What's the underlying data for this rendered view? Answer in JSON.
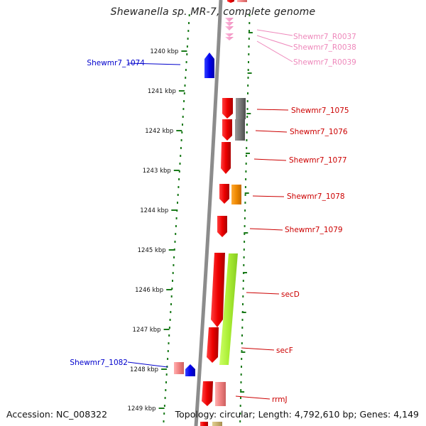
{
  "title": "Shewanella sp. MR-7, complete genome",
  "footer": {
    "accession": "Accession: NC_008322",
    "summary": "Topology: circular; Length: 4,792,610 bp; Genes: 4,149"
  },
  "ticks": [
    "1240 kbp",
    "1241 kbp",
    "1242 kbp",
    "1243 kbp",
    "1244 kbp",
    "1245 kbp",
    "1246 kbp",
    "1247 kbp",
    "1248 kbp",
    "1249 kbp"
  ],
  "colors": {
    "backbone": "#8c8c8c",
    "dots": "#1a7a1a",
    "forward_label": "#0000cc",
    "reverse_label": "#cc0000",
    "rna_label": "#ee88bb"
  },
  "labels": {
    "left": [
      {
        "name": "Shewmr7_1074",
        "color": "#0000cc"
      },
      {
        "name": "Shewmr7_1082",
        "color": "#0000cc"
      }
    ],
    "right": [
      {
        "name": "Shewmr7_R0037",
        "color": "#ee88bb"
      },
      {
        "name": "Shewmr7_R0038",
        "color": "#ee88bb"
      },
      {
        "name": "Shewmr7_R0039",
        "color": "#ee88bb"
      },
      {
        "name": "Shewmr7_1075",
        "color": "#cc0000"
      },
      {
        "name": "Shewmr7_1076",
        "color": "#cc0000"
      },
      {
        "name": "Shewmr7_1077",
        "color": "#cc0000"
      },
      {
        "name": "Shewmr7_1078",
        "color": "#cc0000"
      },
      {
        "name": "Shewmr7_1079",
        "color": "#cc0000"
      },
      {
        "name": "secD",
        "color": "#cc0000"
      },
      {
        "name": "secF",
        "color": "#cc0000"
      },
      {
        "name": "rrmJ",
        "color": "#cc0000"
      }
    ]
  }
}
